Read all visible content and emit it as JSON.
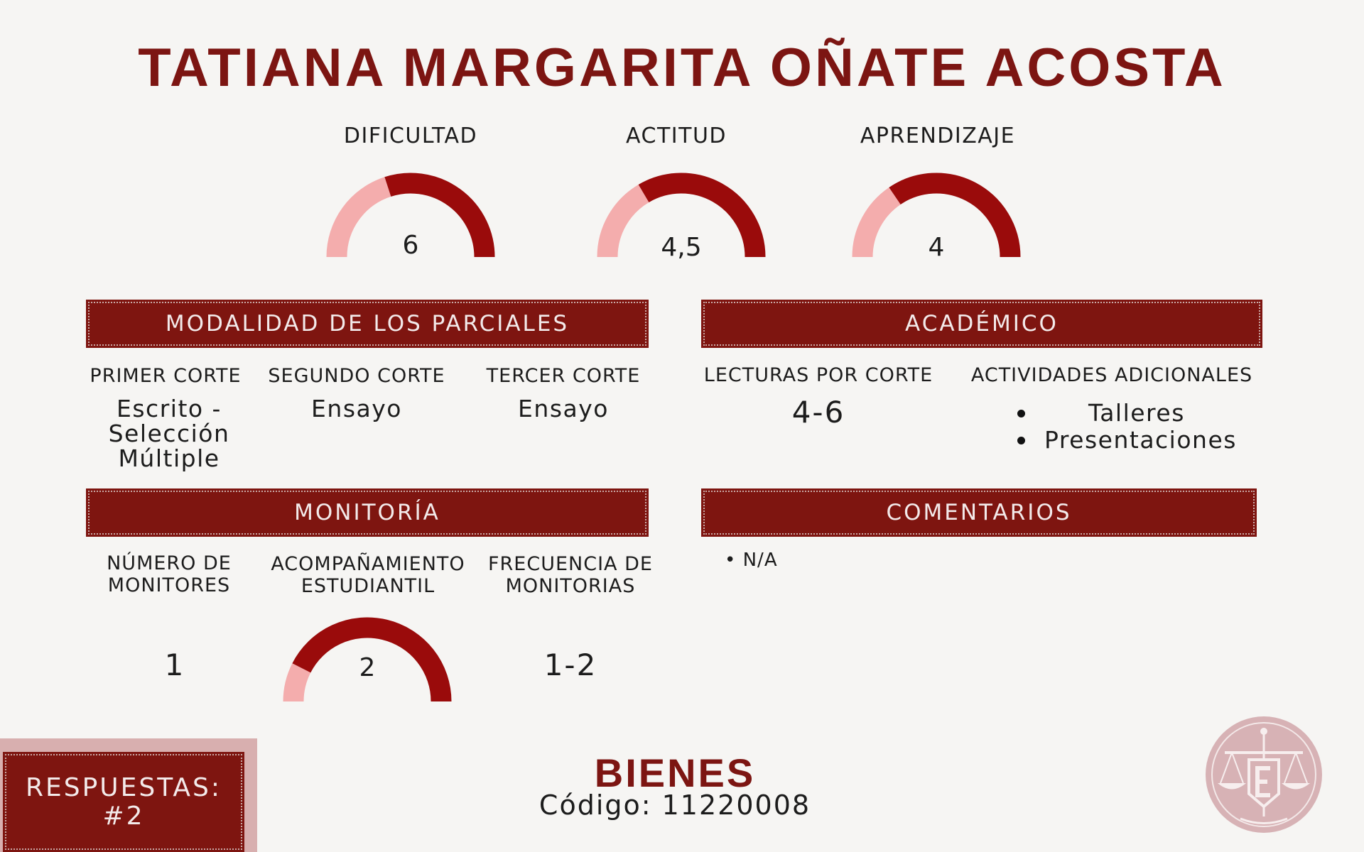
{
  "title": "TATIANA MARGARITA OÑATE ACOSTA",
  "colors": {
    "primary": "#7e1510",
    "gauge_fill": "#9a0b0b",
    "gauge_track": "#f4adad",
    "background": "#f6f5f3",
    "logo": "#d7b2b5"
  },
  "gauges": [
    {
      "label": "DIFICULTAD",
      "value": "6",
      "fraction": 0.6
    },
    {
      "label": "ACTITUD",
      "value": "4,5",
      "fraction": 0.67
    },
    {
      "label": "APRENDIZAJE",
      "value": "4",
      "fraction": 0.69
    }
  ],
  "parciales": {
    "header": "MODALIDAD DE LOS PARCIALES",
    "columns": [
      {
        "heading": "PRIMER CORTE",
        "value_lines": [
          "Escrito -",
          "Selección",
          "Múltiple"
        ]
      },
      {
        "heading": "SEGUNDO CORTE",
        "value_lines": [
          "Ensayo"
        ]
      },
      {
        "heading": "TERCER CORTE",
        "value_lines": [
          "Ensayo"
        ]
      }
    ]
  },
  "academico": {
    "header": "ACADÉMICO",
    "lecturas_heading": "LECTURAS POR CORTE",
    "lecturas_value": "4-6",
    "actividades_heading": "ACTIVIDADES ADICIONALES",
    "actividades": [
      "Talleres",
      "Presentaciones"
    ]
  },
  "monitoria": {
    "header": "MONITORÍA",
    "numero_heading_lines": [
      "NÚMERO DE",
      "MONITORES"
    ],
    "numero_value": "1",
    "acompanamiento_heading_lines": [
      "ACOMPAÑAMIENTO",
      "ESTUDIANTIL"
    ],
    "acompanamiento_value": "2",
    "acompanamiento_fraction": 0.85,
    "frecuencia_heading_lines": [
      "FRECUENCIA DE",
      "MONITORIAS"
    ],
    "frecuencia_value": "1-2"
  },
  "comentarios": {
    "header": "COMENTARIOS",
    "items": [
      "N/A"
    ]
  },
  "respuestas": {
    "label": "RESPUESTAS:",
    "number": "#2"
  },
  "course": {
    "name": "BIENES",
    "code_text": "Código: 11220008"
  },
  "logo_icon": "scales-of-justice-icon"
}
